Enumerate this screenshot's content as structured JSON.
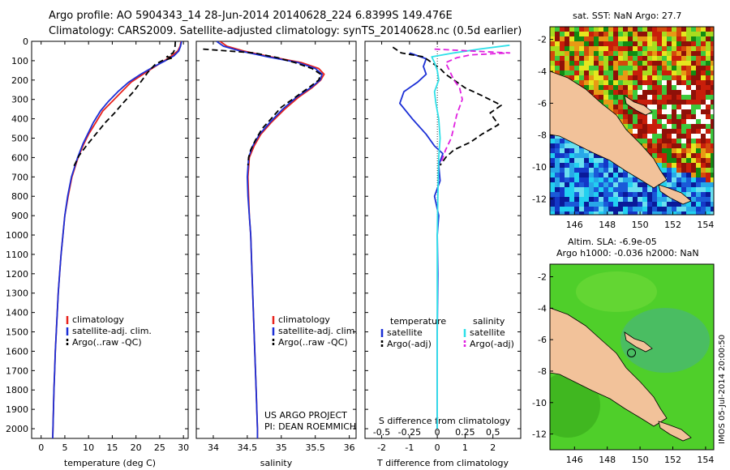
{
  "header": {
    "title_line1": "Argo profile: AO 5904343_14 28-Jun-2014 20140628_224 6.8399S 149.476E",
    "title_line2": "Climatology: CARS2009. Satellite-adjusted climatology: synTS_20140628.nc (0.5d earlier)"
  },
  "credits": {
    "project": "US ARGO PROJECT",
    "pi": "PI: DEAN ROEMMICH",
    "imos_stamp": "IMOS 05-Jul-2014 20:00:50"
  },
  "colors": {
    "climatology": "#e8221c",
    "satellite": "#1b2fd6",
    "argo": "#000000",
    "sal_satellite": "#2ee0e8",
    "sal_argo": "#e020e0",
    "land": "#f2c29a"
  },
  "chart_data": [
    {
      "id": "temperature",
      "type": "line",
      "xlabel": "temperature (deg C)",
      "ylabel": "",
      "xlim": [
        -2,
        31
      ],
      "ylim": [
        0,
        2050
      ],
      "y_inverted": true,
      "xticks": [
        0,
        5,
        10,
        15,
        20,
        25,
        30
      ],
      "yticks": [
        0,
        100,
        200,
        300,
        400,
        500,
        600,
        700,
        800,
        900,
        1000,
        1100,
        1200,
        1300,
        1400,
        1500,
        1600,
        1700,
        1800,
        1900,
        2000
      ],
      "legend": [
        "climatology",
        "satellite-adj. clim.",
        "Argo(..raw -QC)"
      ],
      "legend_position": "lower-center",
      "series": [
        {
          "name": "climatology",
          "style": "solid",
          "color": "#e8221c",
          "points": [
            [
              29.5,
              0
            ],
            [
              29.3,
              25
            ],
            [
              28.8,
              50
            ],
            [
              27.5,
              75
            ],
            [
              26,
              100
            ],
            [
              24,
              130
            ],
            [
              21.5,
              170
            ],
            [
              19,
              210
            ],
            [
              17,
              260
            ],
            [
              15,
              310
            ],
            [
              13,
              360
            ],
            [
              11.5,
              420
            ],
            [
              10,
              480
            ],
            [
              9,
              530
            ],
            [
              7.8,
              600
            ],
            [
              6.5,
              700
            ],
            [
              5.7,
              800
            ],
            [
              5,
              900
            ],
            [
              4.6,
              1000
            ],
            [
              4.2,
              1100
            ],
            [
              3.9,
              1200
            ],
            [
              3.6,
              1300
            ],
            [
              3.4,
              1400
            ],
            [
              3.2,
              1500
            ],
            [
              3,
              1600
            ],
            [
              2.85,
              1700
            ],
            [
              2.7,
              1800
            ],
            [
              2.6,
              1900
            ],
            [
              2.5,
              2000
            ],
            [
              2.45,
              2050
            ]
          ]
        },
        {
          "name": "satellite-adj. clim.",
          "style": "solid",
          "color": "#1b2fd6",
          "points": [
            [
              29.6,
              0
            ],
            [
              29.4,
              25
            ],
            [
              29,
              50
            ],
            [
              28,
              75
            ],
            [
              26.2,
              100
            ],
            [
              23.8,
              130
            ],
            [
              21,
              170
            ],
            [
              18.5,
              210
            ],
            [
              16.2,
              260
            ],
            [
              14.2,
              310
            ],
            [
              12.5,
              360
            ],
            [
              11,
              420
            ],
            [
              9.8,
              480
            ],
            [
              8.8,
              530
            ],
            [
              7.7,
              600
            ],
            [
              6.4,
              700
            ],
            [
              5.6,
              800
            ],
            [
              5,
              900
            ],
            [
              4.6,
              1000
            ],
            [
              4.2,
              1100
            ],
            [
              3.9,
              1200
            ],
            [
              3.6,
              1300
            ],
            [
              3.4,
              1400
            ],
            [
              3.2,
              1500
            ],
            [
              3,
              1600
            ],
            [
              2.85,
              1700
            ],
            [
              2.7,
              1800
            ],
            [
              2.6,
              1900
            ],
            [
              2.5,
              2000
            ],
            [
              2.45,
              2050
            ]
          ]
        },
        {
          "name": "Argo(..raw -QC)",
          "style": "dashed",
          "color": "#000000",
          "points": [
            [
              28.3,
              0
            ],
            [
              28.2,
              40
            ],
            [
              27.8,
              60
            ],
            [
              26.5,
              80
            ],
            [
              27.8,
              85
            ],
            [
              25.5,
              100
            ],
            [
              24,
              120
            ],
            [
              22.5,
              160
            ],
            [
              21,
              210
            ],
            [
              19.5,
              260
            ],
            [
              17.2,
              320
            ],
            [
              15.5,
              370
            ],
            [
              13.5,
              420
            ],
            [
              11.5,
              480
            ],
            [
              9.5,
              540
            ],
            [
              8,
              590
            ],
            [
              6.8,
              650
            ]
          ]
        }
      ]
    },
    {
      "id": "salinity",
      "type": "line",
      "xlabel": "salinity",
      "xlim": [
        33.75,
        36.1
      ],
      "ylim": [
        0,
        2050
      ],
      "y_inverted": true,
      "xticks": [
        34,
        34.5,
        35,
        35.5,
        36
      ],
      "xticklabels": [
        "34",
        "34.5",
        "35",
        "35.5",
        "36"
      ],
      "legend": [
        "climatology",
        "satellite-adj. clim.",
        "Argo(..raw -QC)"
      ],
      "legend_position": "lower-right",
      "series": [
        {
          "name": "climatology",
          "style": "solid",
          "color": "#e8221c",
          "points": [
            [
              34.1,
              0
            ],
            [
              34.2,
              25
            ],
            [
              34.45,
              50
            ],
            [
              34.85,
              80
            ],
            [
              35.3,
              110
            ],
            [
              35.55,
              140
            ],
            [
              35.63,
              170
            ],
            [
              35.58,
              200
            ],
            [
              35.45,
              240
            ],
            [
              35.25,
              290
            ],
            [
              35.05,
              350
            ],
            [
              34.85,
              420
            ],
            [
              34.7,
              480
            ],
            [
              34.6,
              540
            ],
            [
              34.53,
              600
            ],
            [
              34.51,
              700
            ],
            [
              34.52,
              800
            ],
            [
              34.53,
              900
            ],
            [
              34.55,
              1000
            ],
            [
              34.57,
              1200
            ],
            [
              34.59,
              1400
            ],
            [
              34.61,
              1600
            ],
            [
              34.63,
              1800
            ],
            [
              34.65,
              2000
            ],
            [
              34.65,
              2050
            ]
          ]
        },
        {
          "name": "satellite-adj. clim.",
          "style": "solid",
          "color": "#1b2fd6",
          "points": [
            [
              34.05,
              0
            ],
            [
              34.15,
              25
            ],
            [
              34.4,
              50
            ],
            [
              34.8,
              80
            ],
            [
              35.25,
              110
            ],
            [
              35.5,
              140
            ],
            [
              35.6,
              170
            ],
            [
              35.57,
              200
            ],
            [
              35.43,
              240
            ],
            [
              35.22,
              290
            ],
            [
              35.02,
              350
            ],
            [
              34.83,
              420
            ],
            [
              34.68,
              480
            ],
            [
              34.58,
              540
            ],
            [
              34.52,
              600
            ],
            [
              34.5,
              700
            ],
            [
              34.51,
              800
            ],
            [
              34.53,
              900
            ],
            [
              34.55,
              1000
            ],
            [
              34.57,
              1200
            ],
            [
              34.59,
              1400
            ],
            [
              34.61,
              1600
            ],
            [
              34.63,
              1800
            ],
            [
              34.65,
              2000
            ],
            [
              34.65,
              2050
            ]
          ]
        },
        {
          "name": "Argo(..raw -QC)",
          "style": "dashed",
          "color": "#000000",
          "points": [
            [
              33.85,
              40
            ],
            [
              34.6,
              60
            ],
            [
              34.95,
              85
            ],
            [
              35.2,
              110
            ],
            [
              35.45,
              140
            ],
            [
              35.58,
              170
            ],
            [
              35.55,
              200
            ],
            [
              35.4,
              240
            ],
            [
              35.2,
              290
            ],
            [
              35.0,
              340
            ],
            [
              34.85,
              400
            ],
            [
              34.72,
              450
            ],
            [
              34.62,
              510
            ],
            [
              34.55,
              560
            ],
            [
              34.52,
              600
            ],
            [
              34.51,
              640
            ]
          ]
        }
      ]
    },
    {
      "id": "differences",
      "type": "line",
      "xlabel": "T difference from climatology",
      "xlabel_top": "S difference from climatology",
      "xlim": [
        -2.6,
        3.0
      ],
      "ylim": [
        0,
        2050
      ],
      "y_inverted": true,
      "xticks": [
        -2,
        -1,
        0,
        1,
        2
      ],
      "s_ticks": [
        -0.5,
        -0.25,
        0,
        0.25,
        0.5
      ],
      "s_ticklabels": [
        "-0.5",
        "-0.25",
        "0",
        "0.25",
        "0.5"
      ],
      "s_to_t_scale": 4,
      "legend": [
        "temperature",
        "satellite",
        "Argo(-adj)",
        "salinity",
        "satellite",
        "Argo(-adj)"
      ],
      "legend_position": "lower-center",
      "series": [
        {
          "name": "temperature satellite",
          "style": "solid",
          "color": "#1b2fd6",
          "points": [
            [
              -1.0,
              60
            ],
            [
              -0.6,
              80
            ],
            [
              -0.4,
              90
            ],
            [
              -0.45,
              110
            ],
            [
              -0.5,
              130
            ],
            [
              -0.4,
              170
            ],
            [
              -0.7,
              210
            ],
            [
              -1.2,
              260
            ],
            [
              -1.35,
              320
            ],
            [
              -0.9,
              400
            ],
            [
              -0.4,
              480
            ],
            [
              -0.1,
              540
            ],
            [
              0.2,
              580
            ],
            [
              0.05,
              640
            ],
            [
              0.1,
              720
            ],
            [
              -0.1,
              800
            ],
            [
              0.05,
              900
            ],
            [
              0.0,
              1000
            ],
            [
              0.02,
              1200
            ],
            [
              0.0,
              1500
            ],
            [
              0.0,
              2000
            ]
          ]
        },
        {
          "name": "temperature Argo(-adj)",
          "style": "dashed",
          "color": "#000000",
          "points": [
            [
              -1.6,
              30
            ],
            [
              -1.3,
              60
            ],
            [
              -0.5,
              80
            ],
            [
              -0.3,
              100
            ],
            [
              0.1,
              140
            ],
            [
              0.3,
              170
            ],
            [
              0.6,
              200
            ],
            [
              1.0,
              240
            ],
            [
              1.6,
              280
            ],
            [
              2.3,
              330
            ],
            [
              1.9,
              370
            ],
            [
              2.2,
              430
            ],
            [
              1.6,
              480
            ],
            [
              1.2,
              520
            ],
            [
              0.6,
              560
            ],
            [
              0.3,
              600
            ],
            [
              0.1,
              640
            ]
          ]
        },
        {
          "name": "salinity satellite",
          "style": "solid",
          "color": "#2ee0e8",
          "points": [
            [
              2.6,
              20
            ],
            [
              1.5,
              40
            ],
            [
              0.6,
              60
            ],
            [
              -0.2,
              80
            ],
            [
              -0.1,
              110
            ],
            [
              0.0,
              150
            ],
            [
              0.05,
              200
            ],
            [
              -0.1,
              260
            ],
            [
              -0.05,
              320
            ],
            [
              0.05,
              400
            ],
            [
              0.1,
              500
            ],
            [
              0.05,
              600
            ],
            [
              0.02,
              800
            ],
            [
              0.0,
              1000
            ],
            [
              0.0,
              1200
            ],
            [
              0.0,
              1600
            ],
            [
              0.0,
              2000
            ]
          ]
        },
        {
          "name": "salinity Argo(-adj)",
          "style": "dashed",
          "color": "#e020e0",
          "points": [
            [
              -0.1,
              40
            ],
            [
              2.6,
              60
            ],
            [
              1.2,
              70
            ],
            [
              0.7,
              85
            ],
            [
              0.3,
              110
            ],
            [
              0.6,
              200
            ],
            [
              0.8,
              240
            ],
            [
              0.9,
              300
            ],
            [
              0.7,
              380
            ],
            [
              0.6,
              440
            ],
            [
              0.5,
              500
            ],
            [
              0.3,
              560
            ],
            [
              0.15,
              620
            ]
          ]
        }
      ]
    }
  ],
  "maps": [
    {
      "id": "sst-map",
      "title": "sat. SST: NaN Argo: 27.7",
      "xticks": [
        146,
        148,
        150,
        152,
        154
      ],
      "yticks": [
        -2,
        -4,
        -6,
        -8,
        -10,
        -12
      ],
      "xlim": [
        144.5,
        154.5
      ],
      "ylim": [
        -13,
        -1.2
      ]
    },
    {
      "id": "sla-map",
      "title_line1": "Altim. SLA: -6.9e-05",
      "title_line2": "Argo h1000: -0.036 h2000: NaN",
      "xticks": [
        146,
        148,
        150,
        152,
        154
      ],
      "yticks": [
        -2,
        -4,
        -6,
        -8,
        -10,
        -12
      ],
      "xlim": [
        144.5,
        154.5
      ],
      "ylim": [
        -13,
        -1.2
      ],
      "argo_position": [
        149.476,
        -6.8399
      ]
    }
  ]
}
